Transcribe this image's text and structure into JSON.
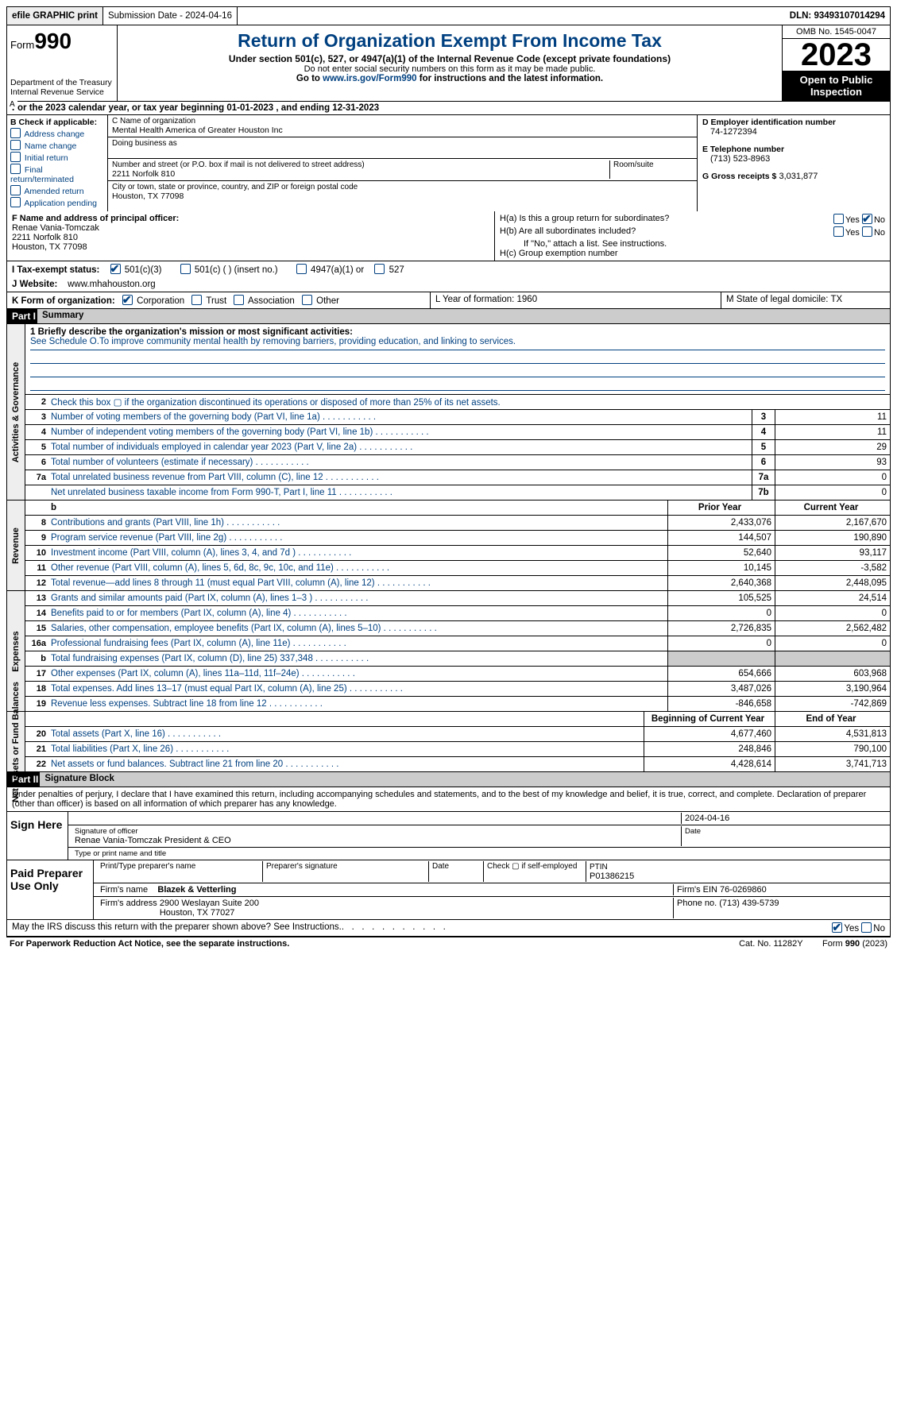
{
  "topbar": {
    "efile": "efile GRAPHIC print",
    "submission": "Submission Date - 2024-04-16",
    "dln": "DLN: 93493107014294"
  },
  "header": {
    "form_prefix": "Form",
    "form_number": "990",
    "dept": "Department of the Treasury\nInternal Revenue Service",
    "title": "Return of Organization Exempt From Income Tax",
    "subtitle": "Under section 501(c), 527, or 4947(a)(1) of the Internal Revenue Code (except private foundations)",
    "note": "Do not enter social security numbers on this form as it may be made public.",
    "go_prefix": "Go to ",
    "go_link": "www.irs.gov/Form990",
    "go_suffix": " for instructions and the latest information.",
    "omb": "OMB No. 1545-0047",
    "year": "2023",
    "open": "Open to Public Inspection"
  },
  "row_a": "For the 2023 calendar year, or tax year beginning 01-01-2023   , and ending 12-31-2023",
  "col_b": {
    "title": "B Check if applicable:",
    "items": [
      "Address change",
      "Name change",
      "Initial return",
      "Final return/terminated",
      "Amended return",
      "Application pending"
    ]
  },
  "col_c": {
    "name_hint": "C Name of organization",
    "name": "Mental Health America of Greater Houston Inc",
    "dba_hint": "Doing business as",
    "street_hint": "Number and street (or P.O. box if mail is not delivered to street address)",
    "street": "2211 Norfolk 810",
    "room_hint": "Room/suite",
    "city_hint": "City or town, state or province, country, and ZIP or foreign postal code",
    "city": "Houston, TX  77098"
  },
  "col_d": {
    "ein_label": "D Employer identification number",
    "ein": "74-1272394",
    "phone_label": "E Telephone number",
    "phone": "(713) 523-8963",
    "gross_label": "G Gross receipts $",
    "gross": "3,031,877"
  },
  "row_f": {
    "officer_label": "F  Name and address of principal officer:",
    "officer": "Renae Vania-Tomczak\n2211 Norfolk 810\nHouston, TX  77098",
    "ha": "H(a)  Is this a group return for subordinates?",
    "hb": "H(b)  Are all subordinates included?",
    "hb_note": "If \"No,\" attach a list. See instructions.",
    "hc": "H(c)  Group exemption number"
  },
  "row_i": {
    "label": "I    Tax-exempt status:",
    "opts": [
      "501(c)(3)",
      "501(c) (  ) (insert no.)",
      "4947(a)(1) or",
      "527"
    ]
  },
  "row_j": {
    "label": "J    Website:",
    "value": "www.mhahouston.org"
  },
  "row_k": {
    "label": "K Form of organization:",
    "opts": [
      "Corporation",
      "Trust",
      "Association",
      "Other"
    ],
    "l": "L Year of formation: 1960",
    "m": "M State of legal domicile: TX"
  },
  "part1": {
    "tag": "Part I",
    "title": "Summary"
  },
  "mission": {
    "q": "1  Briefly describe the organization's mission or most significant activities:",
    "a": "See Schedule O.To improve community mental health by removing barriers, providing education, and linking to services."
  },
  "gov_lines": [
    {
      "n": "2",
      "d": "Check this box ▢ if the organization discontinued its operations or disposed of more than 25% of its net assets."
    },
    {
      "n": "3",
      "d": "Number of voting members of the governing body (Part VI, line 1a)",
      "box": "3",
      "v": "11"
    },
    {
      "n": "4",
      "d": "Number of independent voting members of the governing body (Part VI, line 1b)",
      "box": "4",
      "v": "11"
    },
    {
      "n": "5",
      "d": "Total number of individuals employed in calendar year 2023 (Part V, line 2a)",
      "box": "5",
      "v": "29"
    },
    {
      "n": "6",
      "d": "Total number of volunteers (estimate if necessary)",
      "box": "6",
      "v": "93"
    },
    {
      "n": "7a",
      "d": "Total unrelated business revenue from Part VIII, column (C), line 12",
      "box": "7a",
      "v": "0"
    },
    {
      "n": "",
      "d": "Net unrelated business taxable income from Form 990-T, Part I, line 11",
      "box": "7b",
      "v": "0"
    }
  ],
  "rev_hdr": {
    "prior": "Prior Year",
    "current": "Current Year"
  },
  "rev_lines": [
    {
      "n": "8",
      "d": "Contributions and grants (Part VIII, line 1h)",
      "p": "2,433,076",
      "c": "2,167,670"
    },
    {
      "n": "9",
      "d": "Program service revenue (Part VIII, line 2g)",
      "p": "144,507",
      "c": "190,890"
    },
    {
      "n": "10",
      "d": "Investment income (Part VIII, column (A), lines 3, 4, and 7d )",
      "p": "52,640",
      "c": "93,117"
    },
    {
      "n": "11",
      "d": "Other revenue (Part VIII, column (A), lines 5, 6d, 8c, 9c, 10c, and 11e)",
      "p": "10,145",
      "c": "-3,582"
    },
    {
      "n": "12",
      "d": "Total revenue—add lines 8 through 11 (must equal Part VIII, column (A), line 12)",
      "p": "2,640,368",
      "c": "2,448,095"
    }
  ],
  "exp_lines": [
    {
      "n": "13",
      "d": "Grants and similar amounts paid (Part IX, column (A), lines 1–3 )",
      "p": "105,525",
      "c": "24,514"
    },
    {
      "n": "14",
      "d": "Benefits paid to or for members (Part IX, column (A), line 4)",
      "p": "0",
      "c": "0"
    },
    {
      "n": "15",
      "d": "Salaries, other compensation, employee benefits (Part IX, column (A), lines 5–10)",
      "p": "2,726,835",
      "c": "2,562,482"
    },
    {
      "n": "16a",
      "d": "Professional fundraising fees (Part IX, column (A), line 11e)",
      "p": "0",
      "c": "0"
    },
    {
      "n": "b",
      "d": "Total fundraising expenses (Part IX, column (D), line 25) 337,348",
      "p": "",
      "c": "",
      "grey": true
    },
    {
      "n": "17",
      "d": "Other expenses (Part IX, column (A), lines 11a–11d, 11f–24e)",
      "p": "654,666",
      "c": "603,968"
    },
    {
      "n": "18",
      "d": "Total expenses. Add lines 13–17 (must equal Part IX, column (A), line 25)",
      "p": "3,487,026",
      "c": "3,190,964"
    },
    {
      "n": "19",
      "d": "Revenue less expenses. Subtract line 18 from line 12",
      "p": "-846,658",
      "c": "-742,869"
    }
  ],
  "net_hdr": {
    "prior": "Beginning of Current Year",
    "current": "End of Year"
  },
  "net_lines": [
    {
      "n": "20",
      "d": "Total assets (Part X, line 16)",
      "p": "4,677,460",
      "c": "4,531,813"
    },
    {
      "n": "21",
      "d": "Total liabilities (Part X, line 26)",
      "p": "248,846",
      "c": "790,100"
    },
    {
      "n": "22",
      "d": "Net assets or fund balances. Subtract line 21 from line 20",
      "p": "4,428,614",
      "c": "3,741,713"
    }
  ],
  "part2": {
    "tag": "Part II",
    "title": "Signature Block"
  },
  "perjury": "Under penalties of perjury, I declare that I have examined this return, including accompanying schedules and statements, and to the best of my knowledge and belief, it is true, correct, and complete. Declaration of preparer (other than officer) is based on all information of which preparer has any knowledge.",
  "sign": {
    "label": "Sign Here",
    "date": "2024-04-16",
    "sig_hint": "Signature of officer",
    "name": "Renae Vania-Tomczak  President & CEO",
    "name_hint": "Type or print name and title"
  },
  "paid": {
    "label": "Paid Preparer Use Only",
    "h1": "Print/Type preparer's name",
    "h2": "Preparer's signature",
    "h3": "Date",
    "h4": "Check ▢ if self-employed",
    "ptin_label": "PTIN",
    "ptin": "P01386215",
    "firm_label": "Firm's name",
    "firm": "Blazek & Vetterling",
    "ein_label": "Firm's EIN",
    "ein": "76-0269860",
    "addr_label": "Firm's address",
    "addr": "2900 Weslayan Suite 200\nHouston, TX  77027",
    "phone_label": "Phone no.",
    "phone": "(713) 439-5739"
  },
  "discuss": "May the IRS discuss this return with the preparer shown above? See Instructions.",
  "footer": {
    "left": "For Paperwork Reduction Act Notice, see the separate instructions.",
    "mid": "Cat. No. 11282Y",
    "right": "Form 990 (2023)"
  },
  "vlabels": {
    "gov": "Activities & Governance",
    "rev": "Revenue",
    "exp": "Expenses",
    "net": "Net Assets or Fund Balances"
  }
}
